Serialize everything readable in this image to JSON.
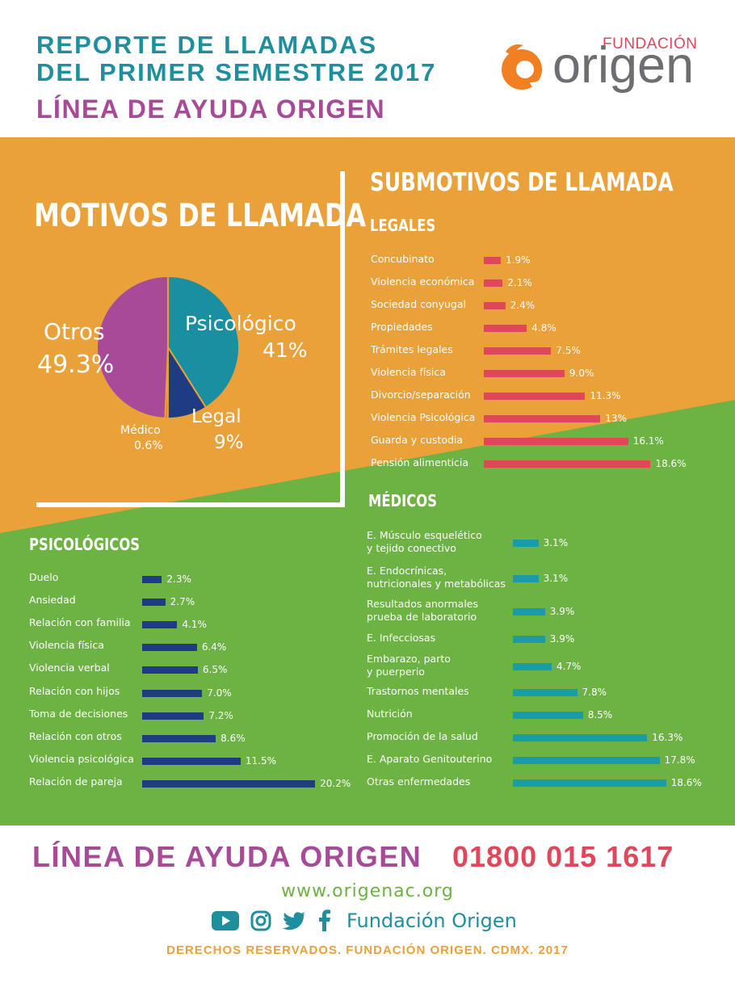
{
  "header": {
    "title_line1": "REPORTE DE LLAMADAS",
    "title_line2": "DEL PRIMER SEMESTRE 2017",
    "subtitle": "LÍNEA DE AYUDA ORIGEN",
    "logo_top": "FUNDACIÓN",
    "logo_main": "origen"
  },
  "colors": {
    "orange": "#eba13a",
    "green": "#6db344",
    "teal": "#1f8f9e",
    "purple": "#a74a97",
    "red": "#e0475a",
    "navy": "#1f3c82",
    "cyan": "#1b9aa8"
  },
  "motivos": {
    "title": "MOTIVOS DE LLAMADA",
    "chart_data": {
      "type": "pie",
      "slices": [
        {
          "label": "Psicológico",
          "value": 41,
          "value_label": "41%",
          "color": "#1b8fa2"
        },
        {
          "label": "Legal",
          "value": 9,
          "value_label": "9%",
          "color": "#1f3c82"
        },
        {
          "label": "Médico",
          "value": 0.6,
          "value_label": "0.6%",
          "color": "#e56d3f"
        },
        {
          "label": "Otros",
          "value": 49.3,
          "value_label": "49.3%",
          "color": "#a74a97"
        }
      ]
    }
  },
  "submotivos_title": "SUBMOTIVOS DE LLAMADA",
  "legales": {
    "title": "LEGALES",
    "chart_data": {
      "type": "bar",
      "color": "#e0475a",
      "categories": [
        "Concubinato",
        "Violencia económica",
        "Sociedad conyugal",
        "Propiedades",
        "Trámites legales",
        "Violencia física",
        "Divorcio/separación",
        "Violencia Psicológica",
        "Guarda y custodia",
        "Pensión alimenticia"
      ],
      "values": [
        1.9,
        2.1,
        2.4,
        4.8,
        7.5,
        9.0,
        11.3,
        13,
        16.1,
        18.6
      ],
      "value_labels": [
        "1.9%",
        "2.1%",
        "2.4%",
        "4.8%",
        "7.5%",
        "9.0%",
        "11.3%",
        "13%",
        "16.1%",
        "18.6%"
      ]
    }
  },
  "medicos": {
    "title": "MÉDICOS",
    "chart_data": {
      "type": "bar",
      "color": "#1b9aa8",
      "categories": [
        [
          "E. Músculo esquelético",
          "y tejido conectivo"
        ],
        [
          "E. Endocrínicas,",
          "nutricionales y metabólicas"
        ],
        [
          "Resultados anormales",
          "prueba de laboratorio"
        ],
        [
          "E. Infecciosas"
        ],
        [
          "Embarazo, parto",
          "y puerperio"
        ],
        [
          "Trastornos mentales"
        ],
        [
          "Nutrición"
        ],
        [
          "Promoción de la salud"
        ],
        [
          "E. Aparato Genitouterino"
        ],
        [
          "Otras enfermedades"
        ]
      ],
      "values": [
        3.1,
        3.1,
        3.9,
        3.9,
        4.7,
        7.8,
        8.5,
        16.3,
        17.8,
        18.6
      ],
      "value_labels": [
        "3.1%",
        "3.1%",
        "3.9%",
        "3.9%",
        "4.7%",
        "7.8%",
        "8.5%",
        "16.3%",
        "17.8%",
        "18.6%"
      ]
    }
  },
  "psicologicos": {
    "title": "PSICOLÓGICOS",
    "chart_data": {
      "type": "bar",
      "color": "#1f3c82",
      "categories": [
        "Duelo",
        "Ansiedad",
        "Relación con familia",
        "Violencia física",
        "Violencia verbal",
        "Relación con hijos",
        "Toma de decisiones",
        "Relación con otros",
        "Violencia psicológica",
        "Relación de pareja"
      ],
      "values": [
        2.3,
        2.7,
        4.1,
        6.4,
        6.5,
        7.0,
        7.2,
        8.6,
        11.5,
        20.2
      ],
      "value_labels": [
        "2.3%",
        "2.7%",
        "4.1%",
        "6.4%",
        "6.5%",
        "7.0%",
        "7.2%",
        "8.6%",
        "11.5%",
        "20.2%"
      ]
    }
  },
  "footer": {
    "line_name": "LÍNEA DE AYUDA ORIGEN",
    "phone": "01800 015 1617",
    "website": "www.origenac.org",
    "social_name": "Fundación Origen",
    "social_icons": [
      "youtube-icon",
      "instagram-icon",
      "twitter-icon",
      "facebook-icon"
    ],
    "rights": "DERECHOS RESERVADOS. FUNDACIÓN ORIGEN. CDMX. 2017"
  }
}
